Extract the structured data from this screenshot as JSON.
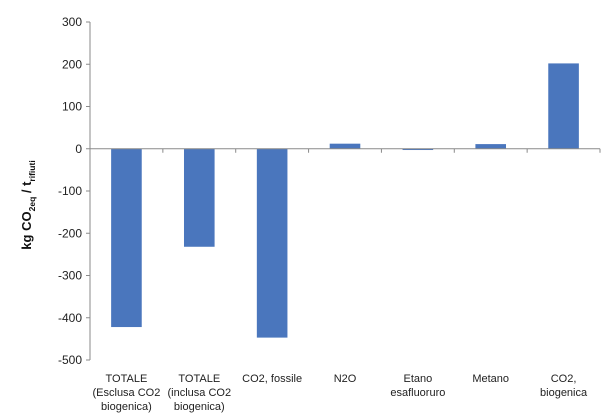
{
  "chart_data": {
    "type": "bar",
    "categories": [
      [
        "TOTALE",
        "(Esclusa CO2",
        "biogenica)"
      ],
      [
        "TOTALE",
        "(inclusa CO2",
        "biogenica)"
      ],
      [
        "CO2, fossile"
      ],
      [
        "N2O"
      ],
      [
        "Etano",
        "esafluoruro"
      ],
      [
        "Metano"
      ],
      [
        "CO2,",
        "biogenica"
      ]
    ],
    "values": [
      -422,
      -232,
      -447,
      12,
      -3,
      11,
      202
    ],
    "ylim": [
      -500,
      300
    ],
    "yticks": [
      "300",
      "200",
      "100",
      "0",
      "-100",
      "-200",
      "-300",
      "-400",
      "-500"
    ],
    "ylabel": {
      "main": "kg CO",
      "sub1": "2eq",
      "mid": " / t",
      "sub2": "rifiuti"
    },
    "grid": false,
    "colors": {
      "bar": "#4a76bd",
      "axis": "#8a8a8a"
    }
  }
}
